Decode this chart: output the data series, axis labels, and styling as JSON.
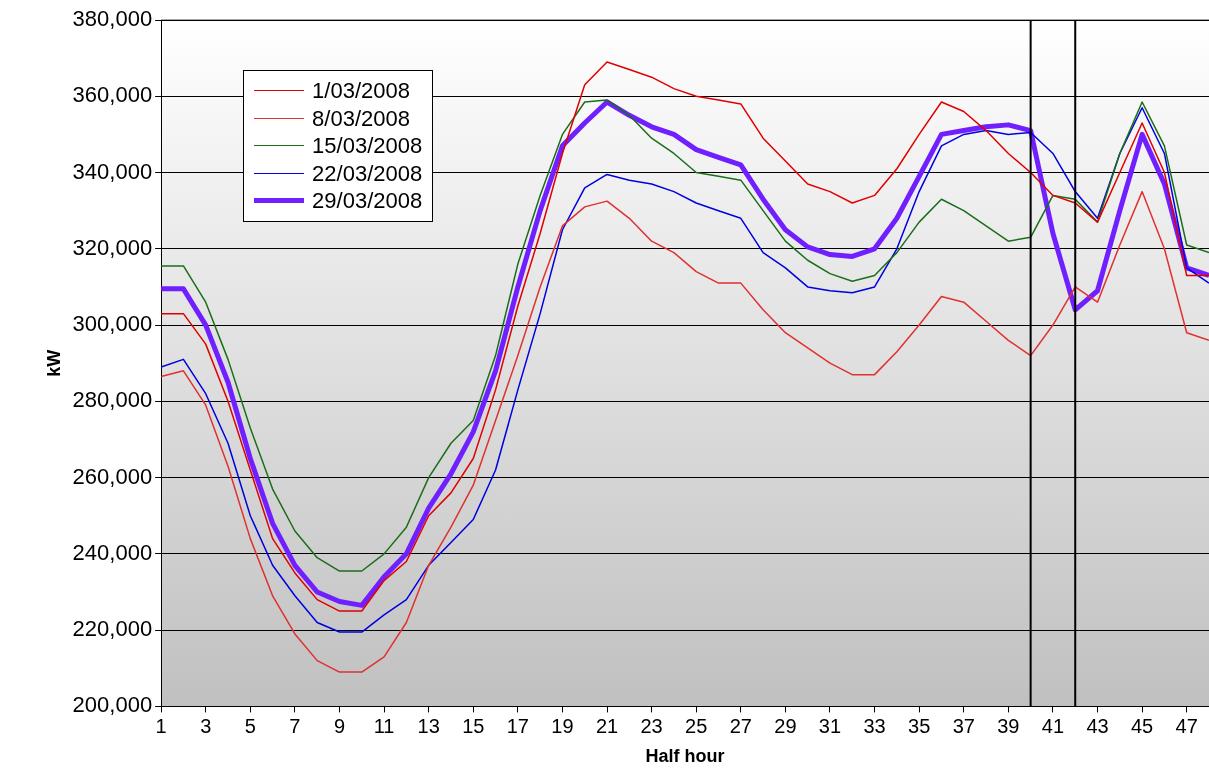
{
  "chart_data": {
    "type": "line",
    "xlabel": "Half hour",
    "ylabel": "kW",
    "x": [
      1,
      2,
      3,
      4,
      5,
      6,
      7,
      8,
      9,
      10,
      11,
      12,
      13,
      14,
      15,
      16,
      17,
      18,
      19,
      20,
      21,
      22,
      23,
      24,
      25,
      26,
      27,
      28,
      29,
      30,
      31,
      32,
      33,
      34,
      35,
      36,
      37,
      38,
      39,
      40,
      41,
      42,
      43,
      44,
      45,
      46,
      47,
      48
    ],
    "xlim": [
      1,
      48
    ],
    "xticks": [
      1,
      3,
      5,
      7,
      9,
      11,
      13,
      15,
      17,
      19,
      21,
      23,
      25,
      27,
      29,
      31,
      33,
      35,
      37,
      39,
      41,
      43,
      45,
      47
    ],
    "ylim": [
      200000,
      380000
    ],
    "yticks": [
      {
        "value": 200000,
        "label": "200,000"
      },
      {
        "value": 220000,
        "label": "220,000"
      },
      {
        "value": 240000,
        "label": "240,000"
      },
      {
        "value": 260000,
        "label": "260,000"
      },
      {
        "value": 280000,
        "label": "280,000"
      },
      {
        "value": 300000,
        "label": "300,000"
      },
      {
        "value": 320000,
        "label": "320,000"
      },
      {
        "value": 340000,
        "label": "340,000"
      },
      {
        "value": 360000,
        "label": "360,000"
      },
      {
        "value": 380000,
        "label": "380,000"
      }
    ],
    "grid": "y",
    "legend": "top left",
    "marker": "none",
    "line_style": "solid",
    "ref_lines": [
      {
        "axis": "x",
        "value": 40,
        "label": null,
        "color": "#000000"
      },
      {
        "axis": "x",
        "value": 42,
        "label": null,
        "color": "#000000"
      }
    ],
    "series": [
      {
        "name": "1/03/2008",
        "color": "#e00000",
        "values": [
          303000,
          303000,
          295000,
          280000,
          262000,
          244000,
          235000,
          228000,
          225000,
          225000,
          233000,
          238000,
          250000,
          256000,
          265000,
          283000,
          305000,
          324000,
          345000,
          363000,
          369000,
          367000,
          365000,
          362000,
          360000,
          359000,
          358000,
          349000,
          343000,
          337000,
          335000,
          332000,
          334000,
          341000,
          350000,
          358500,
          356000,
          351000,
          345000,
          340000,
          334000,
          332000,
          327000,
          340000,
          353000,
          340000,
          313000,
          313000
        ]
      },
      {
        "name": "8/03/2008",
        "color": "#e03030",
        "values": [
          286500,
          288000,
          279000,
          263000,
          244000,
          229000,
          219000,
          212000,
          209000,
          209000,
          213000,
          222000,
          237000,
          247000,
          258000,
          275000,
          292000,
          310000,
          326000,
          331000,
          332500,
          328000,
          322000,
          319000,
          314000,
          311000,
          311000,
          304000,
          298000,
          294000,
          290000,
          287000,
          287000,
          293000,
          300000,
          307500,
          306000,
          301000,
          296000,
          292000,
          300000,
          310000,
          306000,
          321000,
          335000,
          320000,
          298000,
          296000
        ]
      },
      {
        "name": "15/03/2008",
        "color": "#1a6e1a",
        "values": [
          315500,
          315500,
          306000,
          291000,
          273000,
          257000,
          246000,
          239000,
          235500,
          235500,
          240000,
          247000,
          260000,
          269000,
          275000,
          292000,
          316000,
          334000,
          350000,
          358500,
          359000,
          355000,
          349000,
          345000,
          340000,
          339000,
          338000,
          330000,
          322000,
          317000,
          313500,
          311500,
          313000,
          319000,
          327000,
          333000,
          330000,
          326000,
          322000,
          323000,
          334000,
          333000,
          327000,
          345000,
          358500,
          347000,
          321000,
          319000
        ]
      },
      {
        "name": "22/03/2008",
        "color": "#0000e0",
        "values": [
          289000,
          291000,
          282000,
          269000,
          250000,
          237000,
          229000,
          222000,
          219500,
          219500,
          224000,
          228000,
          237000,
          243000,
          249000,
          262000,
          283000,
          303000,
          325000,
          336000,
          339500,
          338000,
          337000,
          335000,
          332000,
          330000,
          328000,
          319000,
          315000,
          310000,
          309000,
          308500,
          310000,
          320000,
          335000,
          347000,
          350000,
          351000,
          350000,
          350500,
          345000,
          335000,
          328000,
          345000,
          357000,
          345000,
          315000,
          311000
        ]
      },
      {
        "name": "29/03/2008",
        "color": "#7020ff",
        "values": [
          309500,
          309500,
          300000,
          285000,
          265000,
          248000,
          237000,
          230000,
          227500,
          226500,
          234000,
          240000,
          252000,
          261000,
          272000,
          288000,
          310000,
          330000,
          347000,
          353000,
          358500,
          355000,
          352000,
          350000,
          346000,
          344000,
          342000,
          333000,
          325000,
          320500,
          318500,
          318000,
          320000,
          328000,
          339000,
          350000,
          351000,
          352000,
          352500,
          351000,
          324000,
          304000,
          309000,
          330000,
          350000,
          337000,
          315000,
          313000
        ]
      }
    ]
  }
}
